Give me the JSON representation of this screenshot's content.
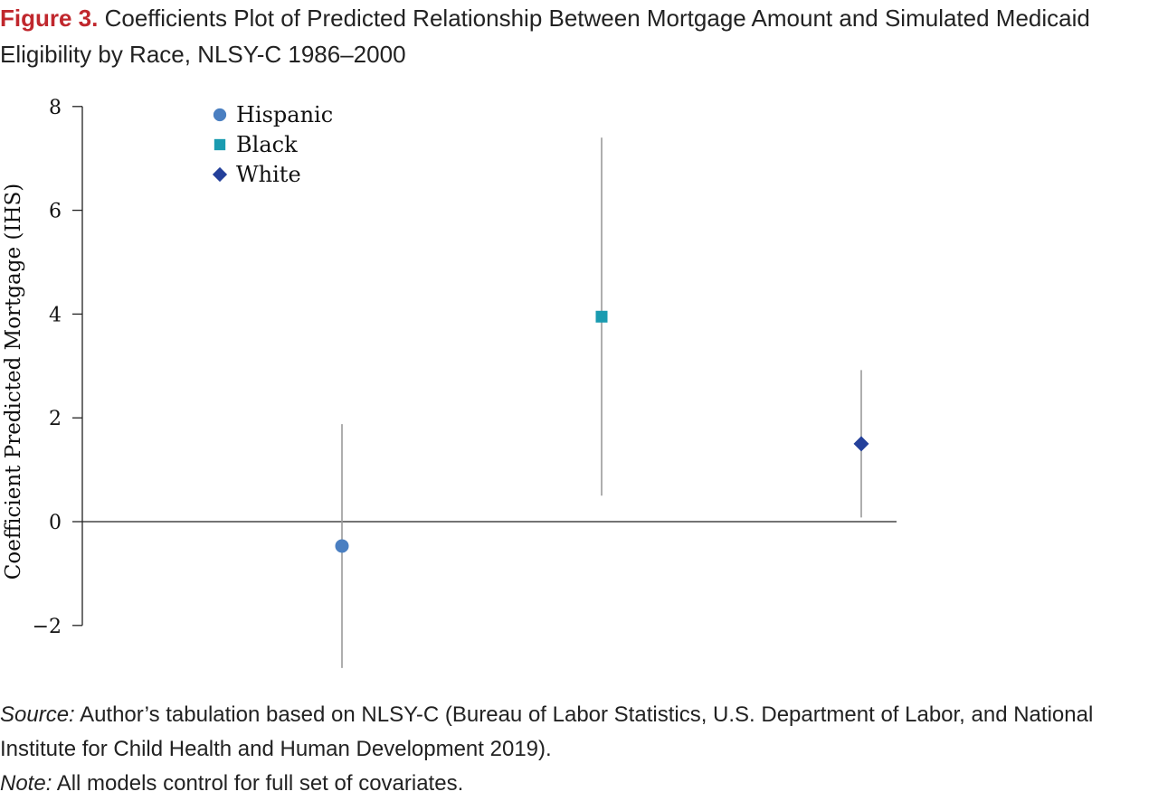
{
  "figure": {
    "label": "Figure 3.",
    "title": "Coefficients Plot of Predicted Relationship Between Mortgage Amount and Simulated Medicaid Eligibility by Race, NLSY-C 1986–2000"
  },
  "chart_data": {
    "type": "scatter",
    "title": "Coefficients Plot of Predicted Relationship Between Mortgage Amount and Simulated Medicaid Eligibility by Race, NLSY-C 1986–2000",
    "xlabel": "",
    "ylabel": "Coefficient Predicted Mortgage (IHS)",
    "ylim": [
      -2.8,
      8.2
    ],
    "yticks": [
      8,
      6,
      4,
      2,
      0,
      -2
    ],
    "ytick_labels": [
      "8",
      "6",
      "4",
      "2",
      "0",
      "−2"
    ],
    "grid": false,
    "legend_position": "top-left",
    "series": [
      {
        "name": "Hispanic",
        "marker": "circle",
        "color": "#4a7fc1",
        "x": 1,
        "y": -0.47,
        "ci_low": -2.82,
        "ci_high": 1.88
      },
      {
        "name": "Black",
        "marker": "square",
        "color": "#1a9bb0",
        "x": 2,
        "y": 3.95,
        "ci_low": 0.5,
        "ci_high": 7.4
      },
      {
        "name": "White",
        "marker": "diamond",
        "color": "#24409a",
        "x": 3,
        "y": 1.5,
        "ci_low": 0.08,
        "ci_high": 2.92
      }
    ]
  },
  "notes": {
    "source_label": "Source:",
    "source_text": " Author’s tabulation based on NLSY-C (Bureau of Labor Statistics, U.S. Department of Labor, and National Institute for Child Health and Human Development 2019).",
    "note_label": "Note:",
    "note_text": " All models control for full set of covariates."
  }
}
